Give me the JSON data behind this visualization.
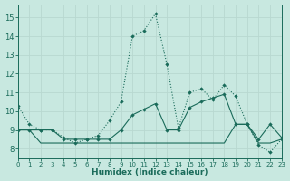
{
  "xlabel": "Humidex (Indice chaleur)",
  "xlim": [
    0,
    23
  ],
  "ylim": [
    7.5,
    15.7
  ],
  "yticks": [
    8,
    9,
    10,
    11,
    12,
    13,
    14,
    15
  ],
  "xticks": [
    0,
    1,
    2,
    3,
    4,
    5,
    6,
    7,
    8,
    9,
    10,
    11,
    12,
    13,
    14,
    15,
    16,
    17,
    18,
    19,
    20,
    21,
    22,
    23
  ],
  "bg_color": "#c8e8e0",
  "line_color": "#1a6b5a",
  "grid_color": "#b8d8d0",
  "s1_x": [
    0,
    1,
    2,
    3,
    4,
    5,
    6,
    7,
    8,
    9,
    10,
    11,
    12,
    13,
    14,
    15,
    16,
    17,
    18,
    19,
    20,
    21,
    22,
    23
  ],
  "s1_y": [
    10.3,
    9.3,
    9.0,
    9.0,
    8.6,
    8.3,
    8.5,
    8.7,
    9.5,
    10.5,
    14.0,
    14.3,
    15.2,
    12.5,
    9.1,
    11.0,
    11.2,
    10.6,
    11.4,
    10.8,
    9.3,
    8.2,
    7.8,
    8.5
  ],
  "s2_x": [
    0,
    1,
    2,
    3,
    4,
    5,
    6,
    7,
    8,
    9,
    10,
    11,
    12,
    13,
    14,
    15,
    16,
    17,
    18,
    19,
    20,
    21,
    22,
    23
  ],
  "s2_y": [
    9.0,
    9.0,
    9.0,
    9.0,
    8.5,
    8.5,
    8.5,
    8.5,
    8.5,
    9.0,
    9.8,
    10.1,
    10.4,
    9.0,
    9.0,
    10.2,
    10.5,
    10.7,
    10.9,
    9.3,
    9.3,
    8.5,
    9.3,
    8.6
  ],
  "s3_x": [
    0,
    1,
    2,
    3,
    4,
    5,
    6,
    7,
    8,
    9,
    10,
    11,
    12,
    13,
    14,
    15,
    16,
    17,
    18,
    19,
    20,
    21,
    22,
    23
  ],
  "s3_y": [
    9.0,
    9.0,
    8.3,
    8.3,
    8.3,
    8.3,
    8.3,
    8.3,
    8.3,
    8.3,
    8.3,
    8.3,
    8.3,
    8.3,
    8.3,
    8.3,
    8.3,
    8.3,
    8.3,
    9.3,
    9.3,
    8.3,
    8.3,
    8.5
  ]
}
